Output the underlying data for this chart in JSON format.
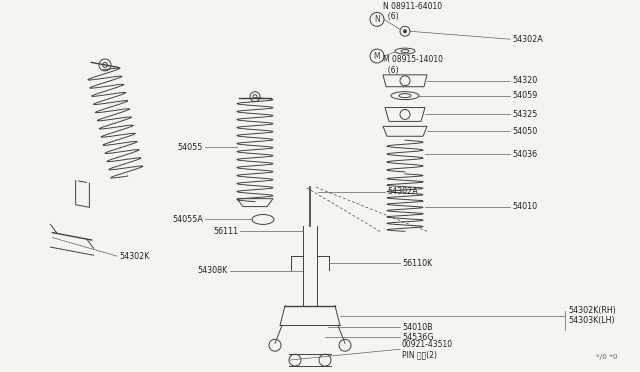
{
  "bg_color": "#f5f5f0",
  "line_color": "#404040",
  "label_line_color": "#606060",
  "text_color": "#222222",
  "labels": {
    "N_part": "N 08911-64010\n  (6)",
    "M_part": "M 08915-14010\n  (6)",
    "p54302A_top": "54302A",
    "p54320": "54320",
    "p54059": "54059",
    "p54325": "54325",
    "p54050": "54050",
    "p54036": "54036",
    "p54010": "54010",
    "p54055": "54055",
    "p54055A": "54055A",
    "p54302K": "54302K",
    "p54302A_mid": "54302A",
    "p56111": "56111",
    "p56110K": "56110K",
    "p54308K": "54308K",
    "p54302K_RH": "54302K(RH)\n54303K(LH)",
    "p54010B": "54010B",
    "p54536G": "54536G",
    "p00921": "00921-43510\nPIN ピン(2)",
    "watermark": "*/0 *0"
  },
  "font_size": 5.8,
  "lw": 0.7
}
